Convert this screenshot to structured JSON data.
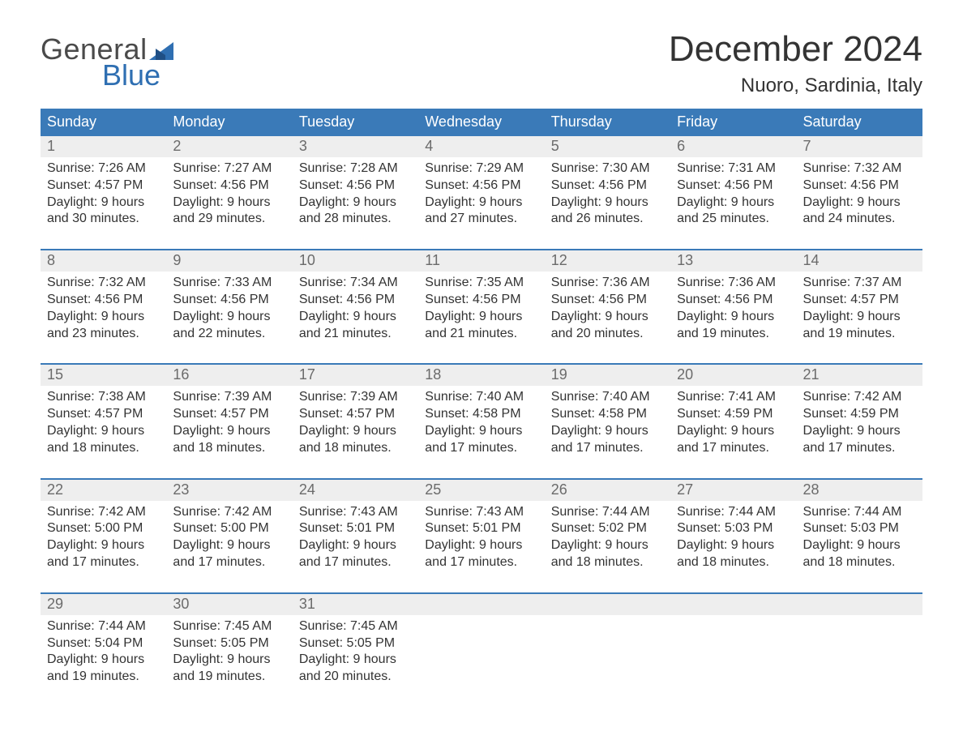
{
  "logo": {
    "word1": "General",
    "word2": "Blue",
    "text_color": "#4a4a4a",
    "accent_color": "#2f6fb2",
    "flag_color": "#2f6fb2"
  },
  "header": {
    "month_title": "December 2024",
    "location": "Nuoro, Sardinia, Italy"
  },
  "colors": {
    "header_bar": "#3a7ab8",
    "header_bar_text": "#ffffff",
    "week_rule": "#3a7ab8",
    "daynum_band": "#eeeeee",
    "daynum_text": "#6b6b6b",
    "body_text": "#333333",
    "background": "#ffffff"
  },
  "typography": {
    "title_fontsize": 44,
    "location_fontsize": 24,
    "dow_fontsize": 18,
    "daynum_fontsize": 18,
    "detail_fontsize": 16,
    "font_family": "Arial, Helvetica, sans-serif"
  },
  "days_of_week": [
    "Sunday",
    "Monday",
    "Tuesday",
    "Wednesday",
    "Thursday",
    "Friday",
    "Saturday"
  ],
  "labels": {
    "sunrise": "Sunrise: ",
    "sunset": "Sunset: ",
    "daylight_prefix": "Daylight: ",
    "hours_word": " hours",
    "and_word": "and ",
    "minutes_suffix": " minutes."
  },
  "weeks": [
    [
      {
        "n": "1",
        "sr": "7:26 AM",
        "ss": "4:57 PM",
        "dh": "9",
        "dm": "30"
      },
      {
        "n": "2",
        "sr": "7:27 AM",
        "ss": "4:56 PM",
        "dh": "9",
        "dm": "29"
      },
      {
        "n": "3",
        "sr": "7:28 AM",
        "ss": "4:56 PM",
        "dh": "9",
        "dm": "28"
      },
      {
        "n": "4",
        "sr": "7:29 AM",
        "ss": "4:56 PM",
        "dh": "9",
        "dm": "27"
      },
      {
        "n": "5",
        "sr": "7:30 AM",
        "ss": "4:56 PM",
        "dh": "9",
        "dm": "26"
      },
      {
        "n": "6",
        "sr": "7:31 AM",
        "ss": "4:56 PM",
        "dh": "9",
        "dm": "25"
      },
      {
        "n": "7",
        "sr": "7:32 AM",
        "ss": "4:56 PM",
        "dh": "9",
        "dm": "24"
      }
    ],
    [
      {
        "n": "8",
        "sr": "7:32 AM",
        "ss": "4:56 PM",
        "dh": "9",
        "dm": "23"
      },
      {
        "n": "9",
        "sr": "7:33 AM",
        "ss": "4:56 PM",
        "dh": "9",
        "dm": "22"
      },
      {
        "n": "10",
        "sr": "7:34 AM",
        "ss": "4:56 PM",
        "dh": "9",
        "dm": "21"
      },
      {
        "n": "11",
        "sr": "7:35 AM",
        "ss": "4:56 PM",
        "dh": "9",
        "dm": "21"
      },
      {
        "n": "12",
        "sr": "7:36 AM",
        "ss": "4:56 PM",
        "dh": "9",
        "dm": "20"
      },
      {
        "n": "13",
        "sr": "7:36 AM",
        "ss": "4:56 PM",
        "dh": "9",
        "dm": "19"
      },
      {
        "n": "14",
        "sr": "7:37 AM",
        "ss": "4:57 PM",
        "dh": "9",
        "dm": "19"
      }
    ],
    [
      {
        "n": "15",
        "sr": "7:38 AM",
        "ss": "4:57 PM",
        "dh": "9",
        "dm": "18"
      },
      {
        "n": "16",
        "sr": "7:39 AM",
        "ss": "4:57 PM",
        "dh": "9",
        "dm": "18"
      },
      {
        "n": "17",
        "sr": "7:39 AM",
        "ss": "4:57 PM",
        "dh": "9",
        "dm": "18"
      },
      {
        "n": "18",
        "sr": "7:40 AM",
        "ss": "4:58 PM",
        "dh": "9",
        "dm": "17"
      },
      {
        "n": "19",
        "sr": "7:40 AM",
        "ss": "4:58 PM",
        "dh": "9",
        "dm": "17"
      },
      {
        "n": "20",
        "sr": "7:41 AM",
        "ss": "4:59 PM",
        "dh": "9",
        "dm": "17"
      },
      {
        "n": "21",
        "sr": "7:42 AM",
        "ss": "4:59 PM",
        "dh": "9",
        "dm": "17"
      }
    ],
    [
      {
        "n": "22",
        "sr": "7:42 AM",
        "ss": "5:00 PM",
        "dh": "9",
        "dm": "17"
      },
      {
        "n": "23",
        "sr": "7:42 AM",
        "ss": "5:00 PM",
        "dh": "9",
        "dm": "17"
      },
      {
        "n": "24",
        "sr": "7:43 AM",
        "ss": "5:01 PM",
        "dh": "9",
        "dm": "17"
      },
      {
        "n": "25",
        "sr": "7:43 AM",
        "ss": "5:01 PM",
        "dh": "9",
        "dm": "17"
      },
      {
        "n": "26",
        "sr": "7:44 AM",
        "ss": "5:02 PM",
        "dh": "9",
        "dm": "18"
      },
      {
        "n": "27",
        "sr": "7:44 AM",
        "ss": "5:03 PM",
        "dh": "9",
        "dm": "18"
      },
      {
        "n": "28",
        "sr": "7:44 AM",
        "ss": "5:03 PM",
        "dh": "9",
        "dm": "18"
      }
    ],
    [
      {
        "n": "29",
        "sr": "7:44 AM",
        "ss": "5:04 PM",
        "dh": "9",
        "dm": "19"
      },
      {
        "n": "30",
        "sr": "7:45 AM",
        "ss": "5:05 PM",
        "dh": "9",
        "dm": "19"
      },
      {
        "n": "31",
        "sr": "7:45 AM",
        "ss": "5:05 PM",
        "dh": "9",
        "dm": "20"
      },
      null,
      null,
      null,
      null
    ]
  ]
}
